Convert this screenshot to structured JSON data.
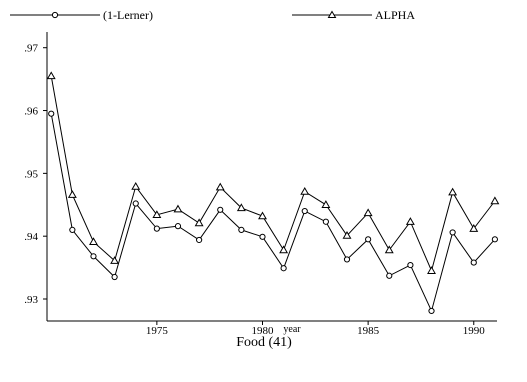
{
  "chart_data": {
    "type": "line",
    "title": "Food (41)",
    "xlabel": "year",
    "ylabel": "",
    "xlim": [
      1969.8,
      1991.1
    ],
    "ylim": [
      0.9265,
      0.9725
    ],
    "x_ticks": [
      1975,
      1980,
      1985,
      1990
    ],
    "x_tick_labels": [
      "1975",
      "1980",
      "1985",
      "1990"
    ],
    "y_ticks": [
      0.93,
      0.94,
      0.95,
      0.96,
      0.97
    ],
    "y_tick_labels": [
      ".93",
      ".94",
      ".95",
      ".96",
      ".97"
    ],
    "grid": false,
    "legend_position": "top",
    "x": [
      1970,
      1971,
      1972,
      1973,
      1974,
      1975,
      1976,
      1977,
      1978,
      1979,
      1980,
      1981,
      1982,
      1983,
      1984,
      1985,
      1986,
      1987,
      1988,
      1989,
      1990,
      1991
    ],
    "series": [
      {
        "name": "(1-Lerner)",
        "marker": "circle",
        "color": "#000000",
        "values": [
          0.9595,
          0.941,
          0.9368,
          0.9335,
          0.9452,
          0.9412,
          0.9416,
          0.9394,
          0.9442,
          0.941,
          0.9399,
          0.9349,
          0.944,
          0.9423,
          0.9363,
          0.9395,
          0.9337,
          0.9354,
          0.9281,
          0.9406,
          0.9358,
          0.9395
        ]
      },
      {
        "name": "ALPHA",
        "marker": "triangle",
        "color": "#000000",
        "values": [
          0.9655,
          0.9466,
          0.9391,
          0.9361,
          0.9479,
          0.9434,
          0.9443,
          0.9421,
          0.9478,
          0.9445,
          0.9432,
          0.9378,
          0.9471,
          0.945,
          0.9401,
          0.9437,
          0.9378,
          0.9423,
          0.9345,
          0.947,
          0.9412,
          0.9456
        ]
      }
    ]
  }
}
